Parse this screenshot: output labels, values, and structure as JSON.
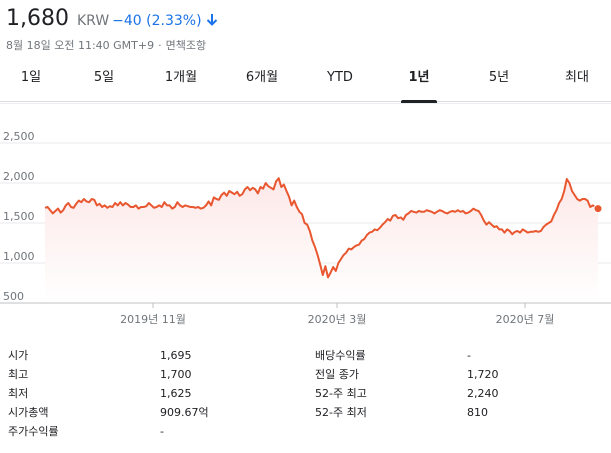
{
  "quote": {
    "price": "1,680",
    "currency": "KRW",
    "change": "−40 (2.33%)",
    "arrow_icon": "arrow-down-icon",
    "change_color": "#1a73e8"
  },
  "subline": {
    "datetime": "8월 18일 오전 11:40 GMT+9",
    "separator": "·",
    "disclaimer": "면책조항"
  },
  "tabs": [
    {
      "label": "1일"
    },
    {
      "label": "5일"
    },
    {
      "label": "1개월"
    },
    {
      "label": "6개월"
    },
    {
      "label": "YTD"
    },
    {
      "label": "1년",
      "active": true
    },
    {
      "label": "5년"
    },
    {
      "label": "최대"
    }
  ],
  "chart_data": {
    "type": "area",
    "title": "",
    "xlabel": "",
    "ylabel": "",
    "y_ticks": [
      "2,500",
      "2,000",
      "1,500",
      "1,000",
      "500"
    ],
    "ylim": [
      500,
      2500
    ],
    "x_ticks": [
      "2019년 11월",
      "2020년 3월",
      "2020년 7월"
    ],
    "grid": true,
    "line_color": "#e8572f",
    "fill_color": "#fde8e8",
    "series": [
      {
        "values": [
          1690,
          1700,
          1660,
          1620,
          1650,
          1680,
          1630,
          1660,
          1720,
          1750,
          1700,
          1690,
          1740,
          1780,
          1760,
          1800,
          1770,
          1760,
          1800,
          1790,
          1720,
          1740,
          1700,
          1720,
          1690,
          1710,
          1700,
          1750,
          1720,
          1760,
          1720,
          1750,
          1730,
          1700,
          1700,
          1720,
          1680,
          1700,
          1700,
          1710,
          1750,
          1720,
          1690,
          1700,
          1720,
          1700,
          1760,
          1720,
          1720,
          1680,
          1700,
          1760,
          1720,
          1700,
          1720,
          1710,
          1700,
          1700,
          1690,
          1700,
          1680,
          1690,
          1720,
          1770,
          1720,
          1820,
          1800,
          1790,
          1850,
          1880,
          1840,
          1900,
          1880,
          1860,
          1890,
          1840,
          1860,
          1920,
          1950,
          1910,
          1940,
          1920,
          1870,
          1950,
          1930,
          2000,
          1960,
          1940,
          1920,
          2020,
          2060,
          1950,
          1980,
          1900,
          1830,
          1720,
          1780,
          1700,
          1640,
          1610,
          1500,
          1480,
          1400,
          1280,
          1200,
          1100,
          980,
          850,
          960,
          820,
          880,
          950,
          900,
          1000,
          1050,
          1100,
          1130,
          1180,
          1170,
          1200,
          1220,
          1230,
          1280,
          1300,
          1350,
          1380,
          1390,
          1420,
          1410,
          1440,
          1480,
          1510,
          1550,
          1530,
          1590,
          1600,
          1560,
          1570,
          1540,
          1600,
          1620,
          1650,
          1640,
          1630,
          1650,
          1640,
          1640,
          1660,
          1650,
          1640,
          1620,
          1640,
          1660,
          1650,
          1630,
          1620,
          1640,
          1650,
          1640,
          1660,
          1640,
          1650,
          1620,
          1630,
          1650,
          1680,
          1660,
          1650,
          1600,
          1530,
          1480,
          1510,
          1480,
          1450,
          1460,
          1420,
          1420,
          1380,
          1420,
          1400,
          1360,
          1390,
          1400,
          1380,
          1420,
          1400,
          1380,
          1390,
          1390,
          1400,
          1390,
          1400,
          1450,
          1480,
          1500,
          1520,
          1600,
          1660,
          1750,
          1800,
          1900,
          2050,
          2000,
          1900,
          1850,
          1800,
          1780,
          1800,
          1800,
          1780,
          1700,
          1720,
          1700,
          1680
        ]
      }
    ]
  },
  "stats": {
    "left": [
      {
        "label": "시가",
        "value": "1,695"
      },
      {
        "label": "최고",
        "value": "1,700"
      },
      {
        "label": "최저",
        "value": "1,625"
      },
      {
        "label": "시가총액",
        "value": "909.67억"
      },
      {
        "label": "주가수익률",
        "value": "-"
      }
    ],
    "right": [
      {
        "label": "배당수익률",
        "value": "-"
      },
      {
        "label": "전일 종가",
        "value": "1,720"
      },
      {
        "label": "52-주 최고",
        "value": "2,240"
      },
      {
        "label": "52-주 최저",
        "value": "810"
      }
    ]
  }
}
